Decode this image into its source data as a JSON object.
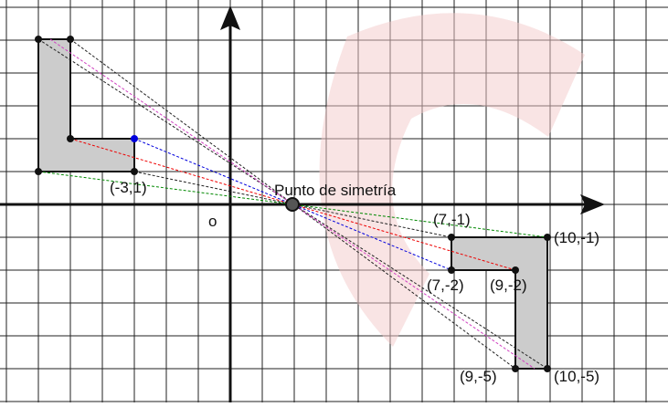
{
  "center_label": "Punto de simetría",
  "origin_label": "o",
  "point_labels": [
    "(-3,1)",
    "(7,-1)",
    "(10,-1)",
    "(7,-2)",
    "(9,-2)",
    "(9,-5)",
    "(10,-5)"
  ]
}
